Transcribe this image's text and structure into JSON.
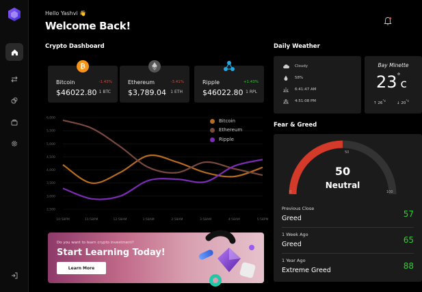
{
  "header": {
    "greeting": "Hello Yashvi",
    "greeting_emoji": "👋",
    "title": "Welcome Back!"
  },
  "sections": {
    "crypto": "Crypto Dashboard",
    "weather": "Daily Weather",
    "fear": "Fear & Greed"
  },
  "coins": [
    {
      "name": "Bitcoin",
      "price": "$46022.80",
      "change": "-1.43%",
      "symbol": "1 BTC",
      "icon": "bitcoin-icon",
      "color": "#f7931a"
    },
    {
      "name": "Ethereum",
      "price": "$3,789.04",
      "change": "-3.41%",
      "symbol": "1 ETH",
      "icon": "ethereum-icon",
      "color": "#3c3c3d"
    },
    {
      "name": "Ripple",
      "price": "$46022.80",
      "change": "+1.43%",
      "symbol": "1 RPL",
      "icon": "ripple-icon",
      "color": "#23a9e1"
    }
  ],
  "colors": {
    "negative": "#e0483a",
    "positive": "#2dd02d",
    "bitcoin_line": "#b96c1e",
    "ethereum_line": "#7b4a3e",
    "ripple_line": "#7d2cb8"
  },
  "chart_data": {
    "type": "line",
    "x": [
      "10:58PM",
      "11:58PM",
      "12:58AM",
      "1:58AM",
      "2:58AM",
      "3:58AM",
      "4:58AM",
      "5:58PM"
    ],
    "y_ticks": [
      "6,000",
      "5,500",
      "5,000",
      "4,500",
      "4,000",
      "3,500",
      "3,000",
      "2,500"
    ],
    "ylim": [
      2500,
      6000
    ],
    "legend_position": "top-right",
    "series": [
      {
        "name": "Bitcoin",
        "color": "#b96c1e",
        "values": [
          4200,
          3500,
          3900,
          4550,
          4300,
          3900,
          3750,
          4100
        ]
      },
      {
        "name": "Ethereum",
        "color": "#7b4a3e",
        "values": [
          5900,
          5600,
          4900,
          4100,
          3900,
          4300,
          4050,
          3800
        ]
      },
      {
        "name": "Ripple",
        "color": "#7d2cb8",
        "values": [
          3300,
          2900,
          3000,
          3600,
          3650,
          3550,
          4150,
          4400
        ]
      }
    ]
  },
  "banner": {
    "small": "Do you want to learn crypto investment?",
    "title": "Start Learning Today!",
    "button": "Learn More"
  },
  "weather": {
    "condition": "Cloudy",
    "humidity": "58%",
    "sunrise": "6:41:47 AM",
    "sunset": "4:51:08 PM",
    "city": "Bay Minette",
    "temp": "23",
    "unit": "c",
    "high": "26",
    "low": "20"
  },
  "fear_greed": {
    "value": "50",
    "label": "Neutral",
    "gauge_min": "0",
    "gauge_mid": "50",
    "gauge_max": "100",
    "level": 0.5,
    "rows": [
      {
        "period": "Previous Close",
        "state": "Greed",
        "value": "57"
      },
      {
        "period": "1 Week Ago",
        "state": "Greed",
        "value": "65"
      },
      {
        "period": "1 Year Ago",
        "state": "Extreme Greed",
        "value": "88"
      }
    ]
  }
}
